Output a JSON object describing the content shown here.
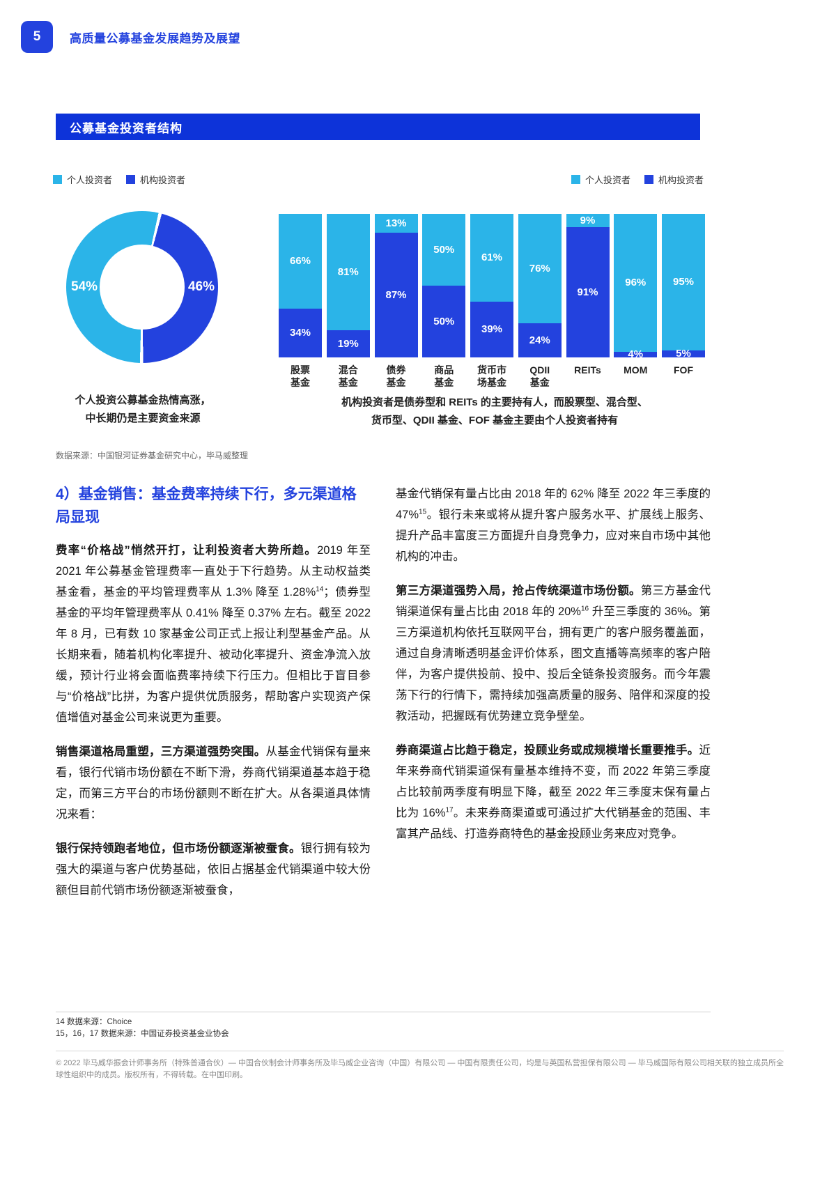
{
  "page": {
    "number": "5",
    "header_title": "高质量公募基金发展趋势及展望"
  },
  "colors": {
    "accent": "#2342DE",
    "header_bar": "#0D33D9",
    "light_blue": "#2BB4E8",
    "dark_blue": "#2342DE"
  },
  "section": {
    "title": "公募基金投资者结构",
    "source": "数据来源：中国银河证券基金研究中心，毕马威整理"
  },
  "legend": {
    "individual": "个人投资者",
    "institutional": "机构投资者"
  },
  "chart_data": [
    {
      "type": "pie",
      "labels": [
        "个人投资者",
        "机构投资者"
      ],
      "values": [
        54,
        46
      ],
      "colors": [
        "#2BB4E8",
        "#2342DE"
      ],
      "unit": "%",
      "caption": "个人投资公募基金热情高涨，\n中长期仍是主要资金来源"
    },
    {
      "type": "bar",
      "stacked": true,
      "unit": "%",
      "ylim": [
        0,
        100
      ],
      "grid": false,
      "legend_position": "top-right",
      "categories": [
        "股票\n基金",
        "混合\n基金",
        "债券\n基金",
        "商品\n基金",
        "货币市\n场基金",
        "QDII\n基金",
        "REITs",
        "MOM",
        "FOF"
      ],
      "series": [
        {
          "name": "个人投资者",
          "color": "#2BB4E8",
          "values": [
            66,
            81,
            13,
            50,
            61,
            76,
            9,
            96,
            95
          ]
        },
        {
          "name": "机构投资者",
          "color": "#2342DE",
          "values": [
            34,
            19,
            87,
            50,
            39,
            24,
            91,
            4,
            5
          ]
        }
      ],
      "caption": "机构投资者是债券型和 REITs 的主要持有人，而股票型、混合型、\n货币型、QDII 基金、FOF 基金主要由个人投资者持有"
    }
  ],
  "body": {
    "heading": "4）基金销售：基金费率持续下行，多元渠道格局显现",
    "left_paragraphs": [
      {
        "segments": [
          {
            "text": "费率“价格战”悄然开打，让利投资者大势所趋。",
            "bold": true
          },
          {
            "text": "2019 年至 2021 年公募基金管理费率一直处于下行趋势。从主动权益类基金看，基金的平均管理费率从 1.3% 降至 1.28%"
          },
          {
            "text": "14",
            "sup": true
          },
          {
            "text": "；债券型基金的平均年管理费率从 0.41% 降至 0.37% 左右。截至 2022 年 8 月，已有数 10 家基金公司正式上报让利型基金产品。从长期来看，随着机构化率提升、被动化率提升、资金净流入放缓，预计行业将会面临费率持续下行压力。但相比于盲目参与“价格战”比拼，为客户提供优质服务，帮助客户实现资产保值增值对基金公司来说更为重要。"
          }
        ]
      },
      {
        "segments": [
          {
            "text": "销售渠道格局重塑，三方渠道强势突围。",
            "bold": true
          },
          {
            "text": "从基金代销保有量来看，银行代销市场份额在不断下滑，券商代销渠道基本趋于稳定，而第三方平台的市场份额则不断在扩大。从各渠道具体情况来看："
          }
        ]
      },
      {
        "segments": [
          {
            "text": "银行保持领跑者地位，但市场份额逐渐被蚕食。",
            "bold": true
          },
          {
            "text": "银行拥有较为强大的渠道与客户优势基础，依旧占据基金代销渠道中较大份额但目前代销市场份额逐渐被蚕食，"
          }
        ]
      }
    ],
    "right_paragraphs": [
      {
        "segments": [
          {
            "text": "基金代销保有量占比由 2018 年的 62% 降至 2022 年三季度的 47%"
          },
          {
            "text": "15",
            "sup": true
          },
          {
            "text": "。银行未来或将从提升客户服务水平、扩展线上服务、提升产品丰富度三方面提升自身竞争力，应对来自市场中其他机构的冲击。"
          }
        ]
      },
      {
        "segments": [
          {
            "text": "第三方渠道强势入局，抢占传统渠道市场份额。",
            "bold": true
          },
          {
            "text": "第三方基金代销渠道保有量占比由 2018 年的 20%"
          },
          {
            "text": "16",
            "sup": true
          },
          {
            "text": " 升至三季度的 36%。第三方渠道机构依托互联网平台，拥有更广的客户服务覆盖面，通过自身清晰透明基金评价体系，图文直播等高频率的客户陪伴，为客户提供投前、投中、投后全链条投资服务。而今年震荡下行的行情下，需持续加强高质量的服务、陪伴和深度的投教活动，把握既有优势建立竞争壁垒。"
          }
        ]
      },
      {
        "segments": [
          {
            "text": "券商渠道占比趋于稳定，投顾业务或成规模增长重要推手。",
            "bold": true
          },
          {
            "text": "近年来券商代销渠道保有量基本维持不变，而 2022 年第三季度占比较前两季度有明显下降，截至 2022 年三季度末保有量占比为 16%"
          },
          {
            "text": "17",
            "sup": true
          },
          {
            "text": "。未来券商渠道或可通过扩大代销基金的范围、丰富其产品线、打造券商特色的基金投顾业务来应对竞争。"
          }
        ]
      }
    ],
    "footnotes": [
      "14 数据来源：Choice",
      "15，16，17 数据来源：中国证券投资基金业协会"
    ],
    "footer": "© 2022 毕马威华振会计师事务所（特殊普通合伙）— 中国合伙制会计师事务所及毕马威企业咨询（中国）有限公司 — 中国有限责任公司，均是与英国私营担保有限公司 — 毕马威国际有限公司相关联的独立成员所全球性组织中的成员。版权所有，不得转载。在中国印刷。"
  }
}
